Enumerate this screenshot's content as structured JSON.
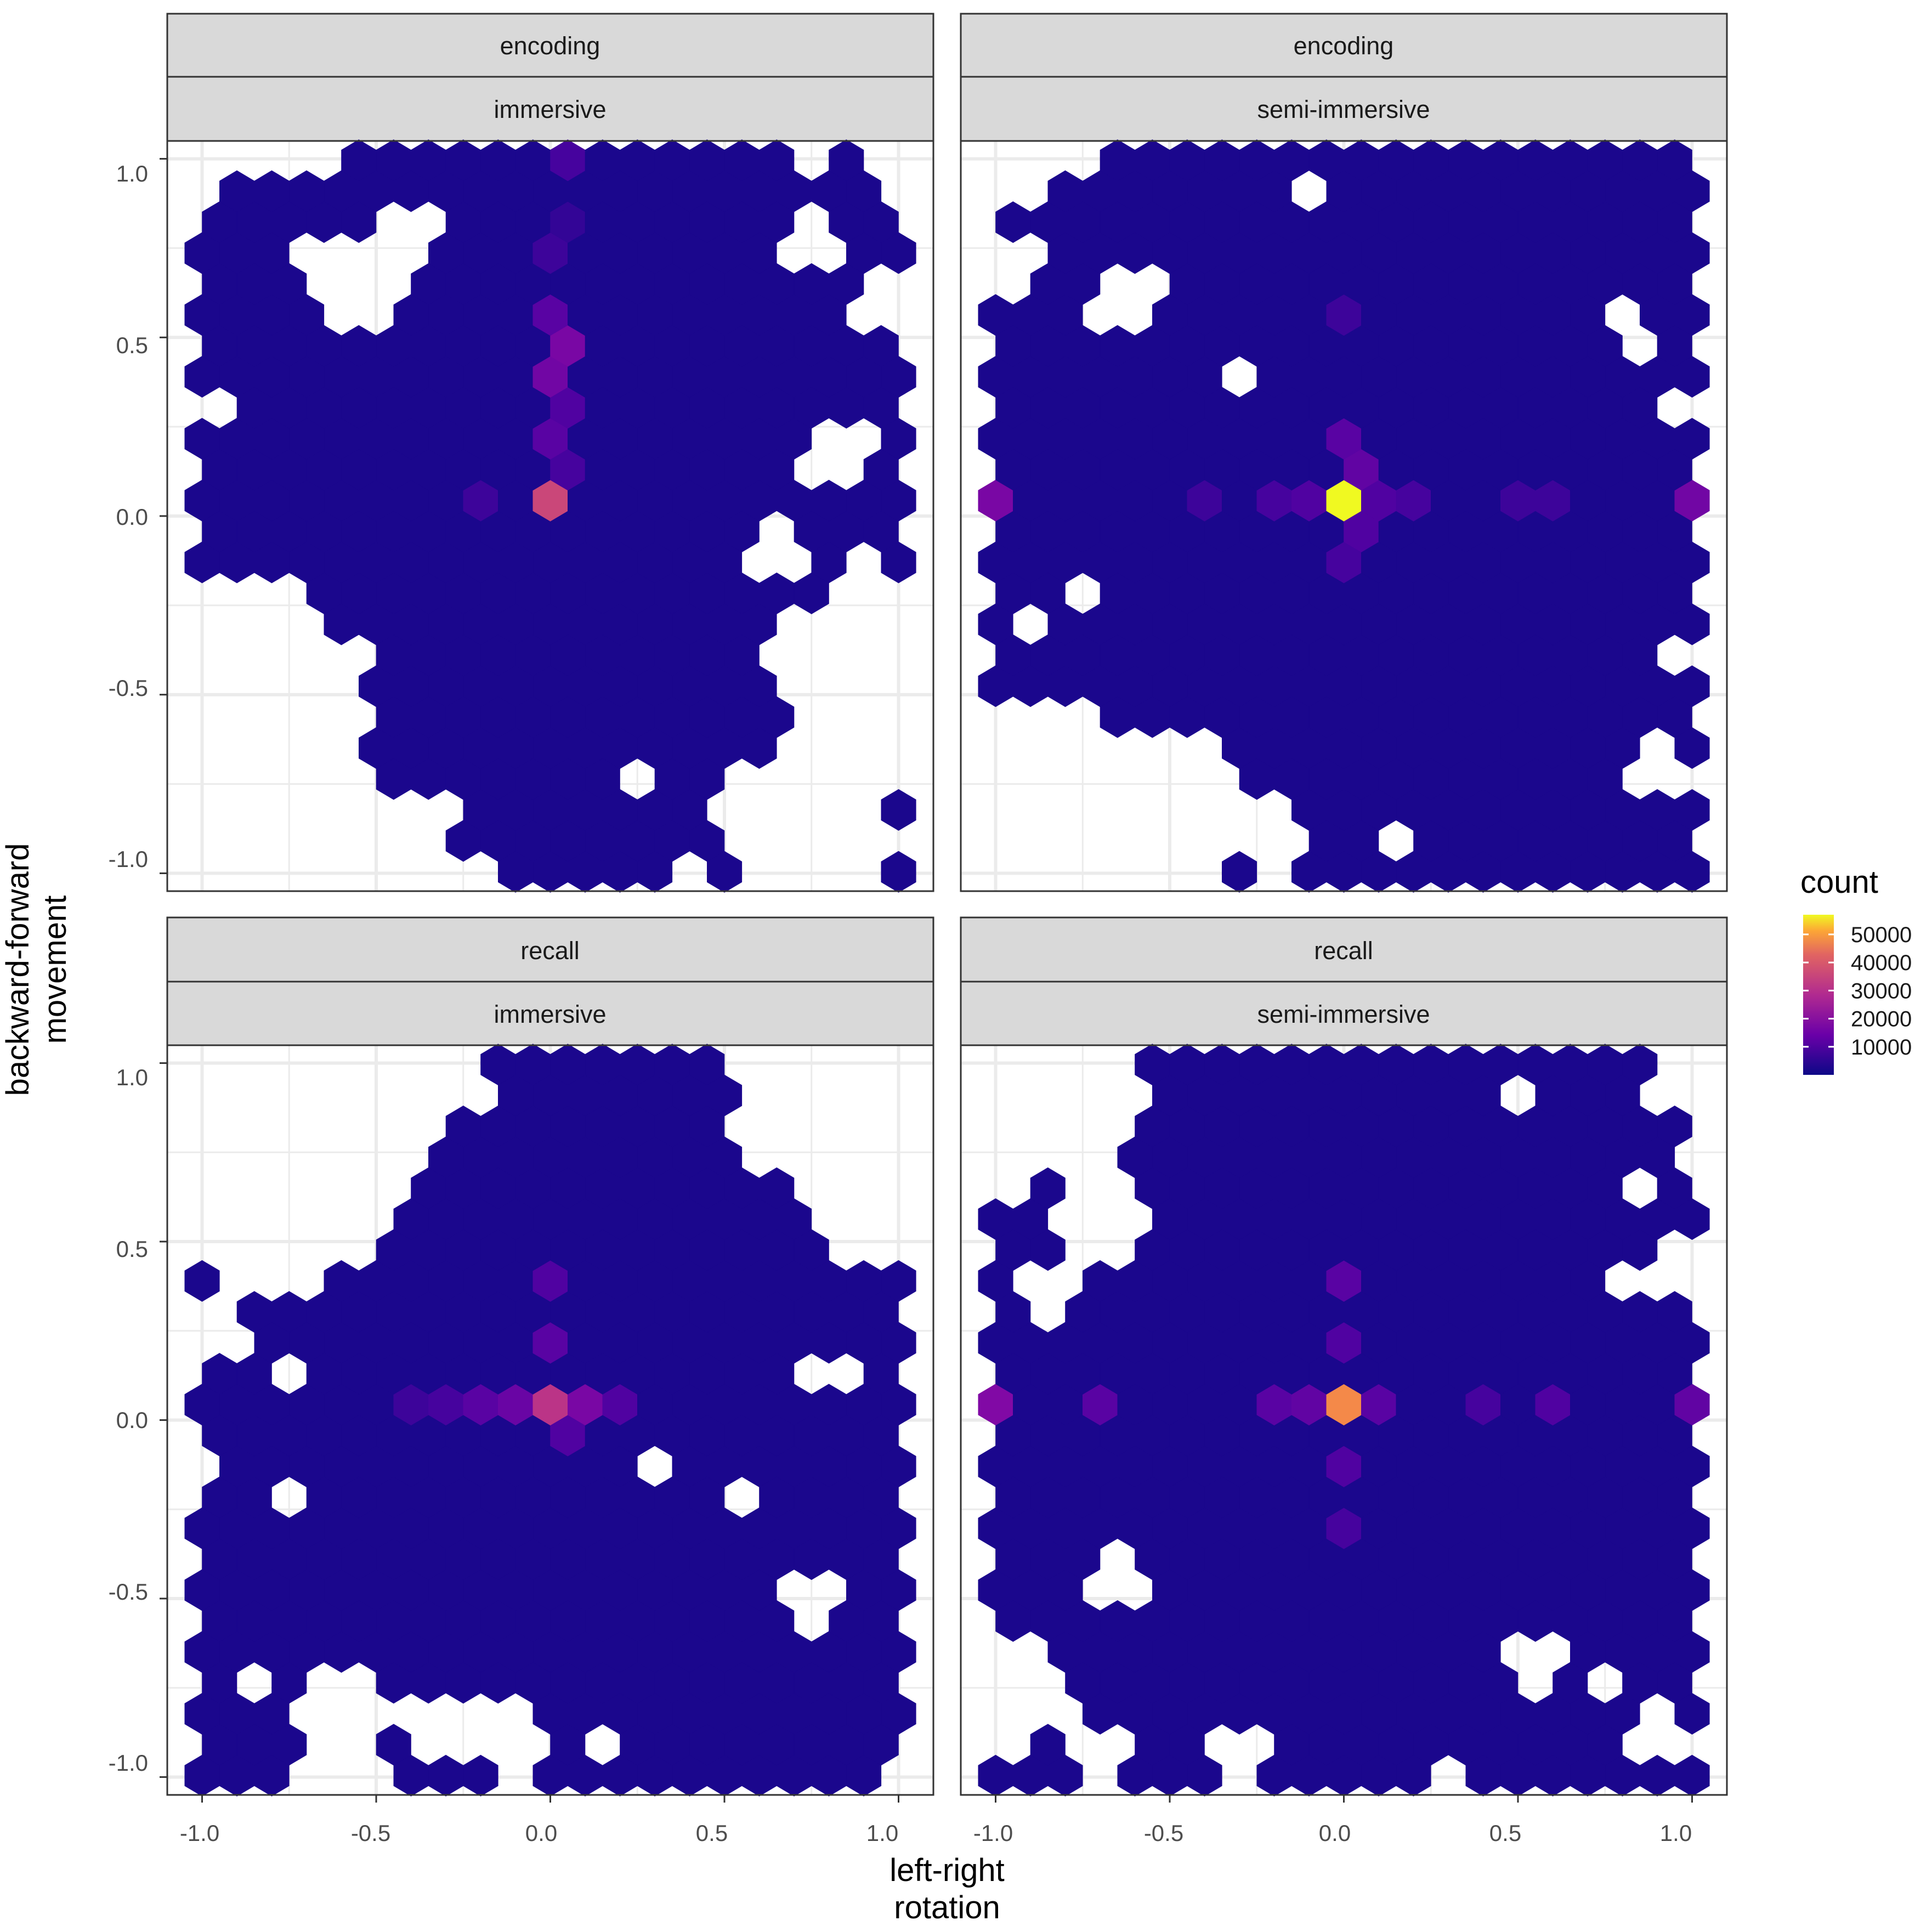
{
  "chart_data": {
    "type": "heatmap",
    "subtype": "hexbin",
    "xlabel": "left-right\nrotation",
    "ylabel": "backward-forward\nmovement",
    "xlim": [
      -1.1,
      1.1
    ],
    "ylim": [
      -1.05,
      1.05
    ],
    "x_ticks": [
      "-1.0",
      "-0.5",
      "0.0",
      "0.5",
      "1.0"
    ],
    "y_ticks": [
      "-1.0",
      "-0.5",
      "0.0",
      "0.5",
      "1.0"
    ],
    "grid": true,
    "legend": {
      "title": "count",
      "placement": "right",
      "colormap": "plasma",
      "range": [
        0,
        57000
      ],
      "breaks": [
        10000,
        20000,
        30000,
        40000,
        50000
      ],
      "labels": [
        "10000",
        "20000",
        "30000",
        "40000",
        "50000"
      ]
    },
    "colors": {
      "low": "#0d0887",
      "mid": "#9c179e",
      "mid_high": "#ed7953",
      "high": "#f0f921",
      "strip_fill": "#d9d9d9",
      "grid": "#ebebeb",
      "panel_border": "#333333"
    },
    "hex_grid": {
      "x_step": 0.1,
      "row_step": 0.0866,
      "x_offset_odd_rows": 0.05,
      "rows_y_origin": 0.0433
    },
    "background_count": 1500,
    "panels": [
      {
        "strips": [
          "encoding",
          "immersive"
        ],
        "rows": [
          {
            "y": 1.0,
            "x": [
              0.0,
              0.0
            ]
          },
          {
            "y": -1.0,
            "x": [
              0.0,
              0.0
            ]
          }
        ],
        "hotspots": [
          {
            "x": 0.0,
            "y": 0.043,
            "count": 25000
          },
          {
            "x": 0.05,
            "y": 0.476,
            "count": 12000
          },
          {
            "x": 0.0,
            "y": 0.39,
            "count": 11000
          },
          {
            "x": 0.0,
            "y": 0.563,
            "count": 8000
          },
          {
            "x": 0.0,
            "y": 0.216,
            "count": 8000
          },
          {
            "x": 0.05,
            "y": 0.303,
            "count": 7000
          },
          {
            "x": 0.05,
            "y": 0.13,
            "count": 6000
          },
          {
            "x": 0.05,
            "y": 0.996,
            "count": 6000
          },
          {
            "x": 0.0,
            "y": 0.736,
            "count": 5000
          },
          {
            "x": -0.2,
            "y": 0.043,
            "count": 5000
          },
          {
            "x": 0.05,
            "y": 0.823,
            "count": 4000
          }
        ]
      },
      {
        "strips": [
          "encoding",
          "semi-immersive"
        ],
        "hotspots": [
          {
            "x": 0.0,
            "y": 0.043,
            "count": 57000
          },
          {
            "x": -1.0,
            "y": 0.043,
            "count": 12000
          },
          {
            "x": 1.0,
            "y": 0.043,
            "count": 11000
          },
          {
            "x": 0.05,
            "y": 0.13,
            "count": 9000
          },
          {
            "x": 0.0,
            "y": 0.216,
            "count": 8000
          },
          {
            "x": 0.05,
            "y": -0.043,
            "count": 7000
          },
          {
            "x": 0.0,
            "y": -0.13,
            "count": 6000
          },
          {
            "x": 0.2,
            "y": 0.043,
            "count": 6000
          },
          {
            "x": -0.2,
            "y": 0.043,
            "count": 6000
          },
          {
            "x": 0.5,
            "y": 0.043,
            "count": 5000
          },
          {
            "x": 0.6,
            "y": 0.043,
            "count": 5000
          },
          {
            "x": -0.4,
            "y": 0.043,
            "count": 5000
          },
          {
            "x": -0.1,
            "y": 0.043,
            "count": 7000
          },
          {
            "x": 0.1,
            "y": 0.043,
            "count": 7000
          },
          {
            "x": 0.0,
            "y": 0.563,
            "count": 5000
          }
        ]
      },
      {
        "strips": [
          "recall",
          "immersive"
        ],
        "hotspots": [
          {
            "x": 0.0,
            "y": 0.043,
            "count": 22000
          },
          {
            "x": 0.1,
            "y": 0.043,
            "count": 12000
          },
          {
            "x": -0.1,
            "y": 0.043,
            "count": 10000
          },
          {
            "x": -0.2,
            "y": 0.043,
            "count": 8000
          },
          {
            "x": 0.2,
            "y": 0.043,
            "count": 7000
          },
          {
            "x": 0.0,
            "y": 0.216,
            "count": 8000
          },
          {
            "x": 0.0,
            "y": 0.39,
            "count": 7000
          },
          {
            "x": 0.05,
            "y": -0.043,
            "count": 7000
          },
          {
            "x": -0.3,
            "y": 0.043,
            "count": 6000
          },
          {
            "x": -0.4,
            "y": 0.043,
            "count": 5000
          }
        ]
      },
      {
        "strips": [
          "recall",
          "semi-immersive"
        ],
        "hotspots": [
          {
            "x": 0.0,
            "y": 0.043,
            "count": 36000
          },
          {
            "x": -1.0,
            "y": 0.043,
            "count": 13000
          },
          {
            "x": 1.0,
            "y": 0.043,
            "count": 9000
          },
          {
            "x": -0.7,
            "y": 0.043,
            "count": 8000
          },
          {
            "x": -0.2,
            "y": 0.043,
            "count": 8000
          },
          {
            "x": -0.1,
            "y": 0.043,
            "count": 9000
          },
          {
            "x": 0.1,
            "y": 0.043,
            "count": 8000
          },
          {
            "x": 0.6,
            "y": 0.043,
            "count": 7000
          },
          {
            "x": 0.4,
            "y": 0.043,
            "count": 6000
          },
          {
            "x": 0.0,
            "y": 0.39,
            "count": 8000
          },
          {
            "x": 0.0,
            "y": 0.216,
            "count": 7000
          },
          {
            "x": 0.0,
            "y": -0.13,
            "count": 7000
          },
          {
            "x": 0.0,
            "y": -0.303,
            "count": 6000
          }
        ]
      }
    ]
  }
}
